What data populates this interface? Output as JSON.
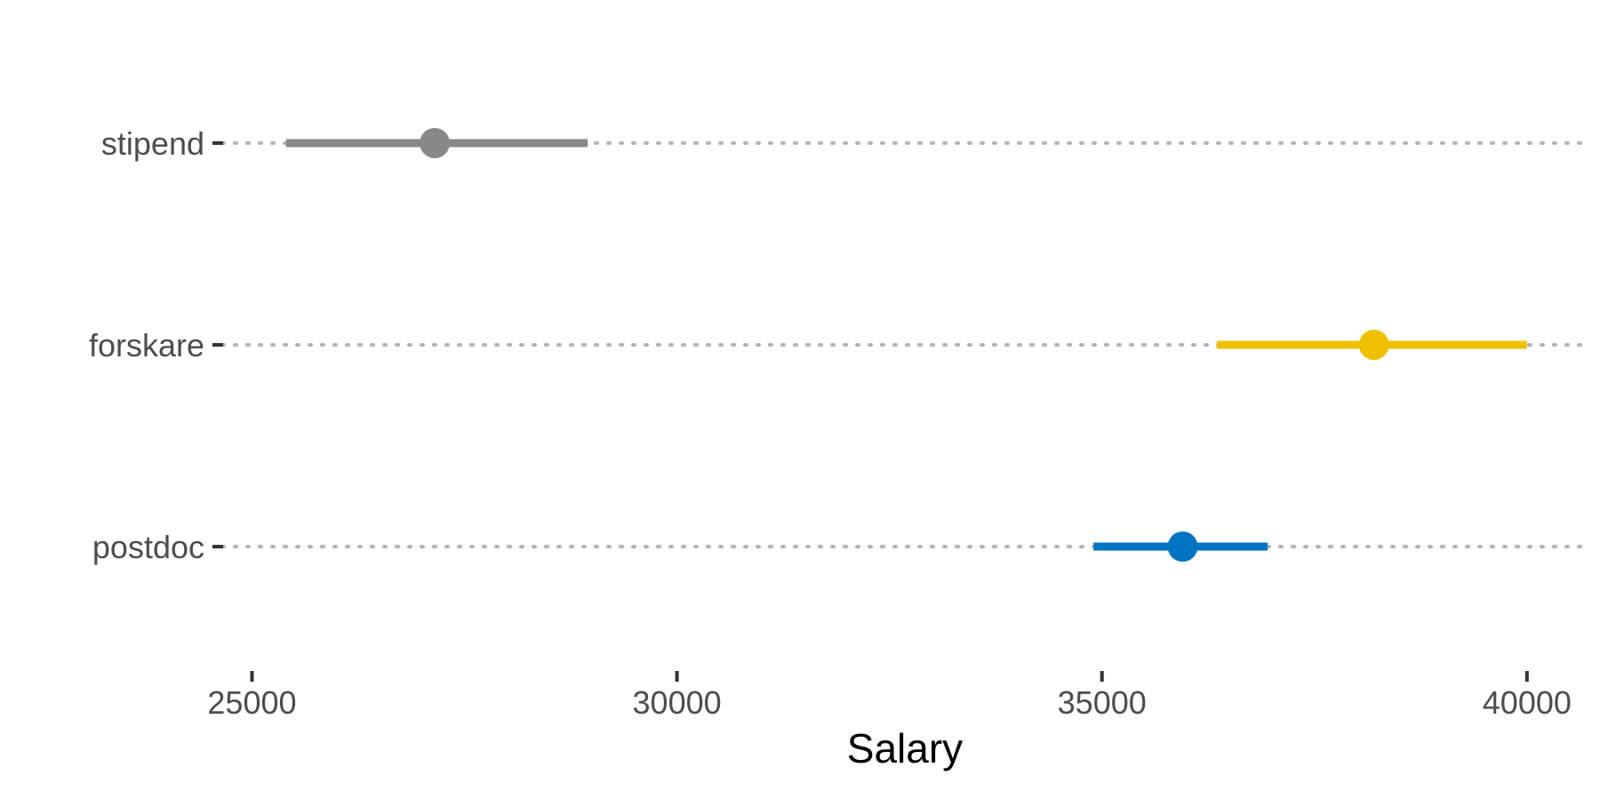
{
  "chart_data": {
    "type": "pointrange",
    "xlabel": "Salary",
    "ylabel": "",
    "xlim": [
      24650,
      40650
    ],
    "x_ticks": [
      25000,
      30000,
      35000,
      40000
    ],
    "x_tick_labels": [
      "25000",
      "30000",
      "35000",
      "40000"
    ],
    "categories": [
      "stipend",
      "forskare",
      "postdoc"
    ],
    "series": [
      {
        "category": "stipend",
        "estimate": 27150,
        "lower": 25400,
        "upper": 28950,
        "color": "#888888"
      },
      {
        "category": "forskare",
        "estimate": 38200,
        "lower": 36350,
        "upper": 40000,
        "color": "#EFC000"
      },
      {
        "category": "postdoc",
        "estimate": 35950,
        "lower": 34900,
        "upper": 36950,
        "color": "#0073C2"
      }
    ],
    "grid": {
      "horizontal": "dotted",
      "vertical": false
    },
    "legend": "none"
  }
}
